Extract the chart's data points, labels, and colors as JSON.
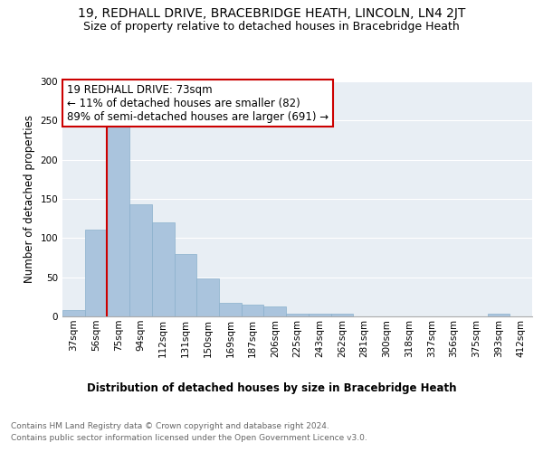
{
  "title": "19, REDHALL DRIVE, BRACEBRIDGE HEATH, LINCOLN, LN4 2JT",
  "subtitle": "Size of property relative to detached houses in Bracebridge Heath",
  "xlabel": "Distribution of detached houses by size in Bracebridge Heath",
  "ylabel": "Number of detached properties",
  "categories": [
    "37sqm",
    "56sqm",
    "75sqm",
    "94sqm",
    "112sqm",
    "131sqm",
    "150sqm",
    "169sqm",
    "187sqm",
    "206sqm",
    "225sqm",
    "243sqm",
    "262sqm",
    "281sqm",
    "300sqm",
    "318sqm",
    "337sqm",
    "356sqm",
    "375sqm",
    "393sqm",
    "412sqm"
  ],
  "values": [
    8,
    111,
    244,
    143,
    120,
    80,
    48,
    17,
    15,
    13,
    3,
    4,
    4,
    0,
    0,
    0,
    0,
    0,
    0,
    3,
    0
  ],
  "bar_color": "#aac4dd",
  "bar_edge_color": "#8ab0cc",
  "highlight_index": 2,
  "highlight_line_color": "#cc0000",
  "annotation_text": "19 REDHALL DRIVE: 73sqm\n← 11% of detached houses are smaller (82)\n89% of semi-detached houses are larger (691) →",
  "annotation_box_color": "#ffffff",
  "annotation_box_edge_color": "#cc0000",
  "ylim": [
    0,
    300
  ],
  "yticks": [
    0,
    50,
    100,
    150,
    200,
    250,
    300
  ],
  "background_color": "#e8eef4",
  "footer_line1": "Contains HM Land Registry data © Crown copyright and database right 2024.",
  "footer_line2": "Contains public sector information licensed under the Open Government Licence v3.0.",
  "title_fontsize": 10,
  "subtitle_fontsize": 9,
  "axis_label_fontsize": 8.5,
  "tick_fontsize": 7.5,
  "annotation_fontsize": 8.5,
  "footer_fontsize": 6.5
}
